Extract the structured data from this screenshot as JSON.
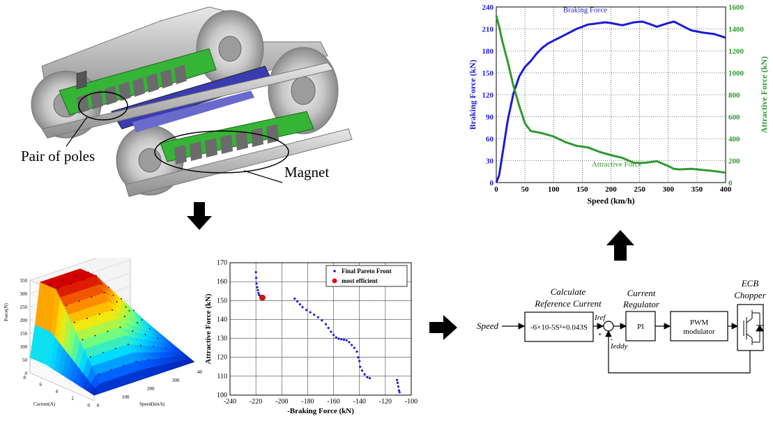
{
  "bogie": {
    "label_poles": "Pair of poles",
    "label_magnet": "Magnet"
  },
  "force_chart": {
    "chart_data": {
      "type": "line",
      "title": "",
      "xlabel": "Speed (km/h)",
      "ylabel_left": "Braking Force (kN)",
      "ylabel_right": "Attractive Force (kN)",
      "x_ticks": [
        0,
        50,
        100,
        150,
        200,
        250,
        300,
        350,
        400
      ],
      "y_left_ticks": [
        0,
        30,
        60,
        90,
        120,
        150,
        180,
        210,
        240
      ],
      "y_right_ticks": [
        0,
        200,
        400,
        600,
        800,
        1000,
        1200,
        1400,
        1600
      ],
      "xlim": [
        0,
        400
      ],
      "ylim_left": [
        0,
        240
      ],
      "ylim_right": [
        0,
        1600
      ],
      "grid": "dotted",
      "series": [
        {
          "name": "Braking Force",
          "axis": "left",
          "color": "#1a1ad8",
          "x": [
            0,
            5,
            10,
            20,
            30,
            40,
            50,
            60,
            70,
            80,
            90,
            100,
            120,
            140,
            160,
            180,
            190,
            200,
            220,
            240,
            255,
            270,
            280,
            300,
            310,
            320,
            340,
            360,
            380,
            400
          ],
          "y": [
            0,
            10,
            35,
            85,
            122,
            145,
            158,
            166,
            176,
            184,
            190,
            194,
            202,
            210,
            216,
            218,
            219,
            218,
            215,
            219,
            220,
            216,
            213,
            218,
            220,
            216,
            208,
            205,
            203,
            198
          ]
        },
        {
          "name": "Attractive Force",
          "axis": "right",
          "color": "#2e9a2e",
          "x": [
            0,
            5,
            10,
            20,
            30,
            40,
            50,
            60,
            80,
            100,
            120,
            140,
            160,
            180,
            200,
            220,
            240,
            260,
            280,
            300,
            310,
            320,
            340,
            360,
            380,
            400
          ],
          "y": [
            1520,
            1420,
            1300,
            1100,
            880,
            700,
            540,
            470,
            450,
            420,
            370,
            335,
            320,
            280,
            250,
            225,
            180,
            180,
            195,
            150,
            125,
            120,
            125,
            115,
            105,
            90
          ]
        }
      ]
    }
  },
  "surface_plot": {
    "zlabel": "Force(N)",
    "xlabel": "Current(A)",
    "ylabel": "Speed(km/h)",
    "z_ticks": [
      "0",
      "50",
      "100",
      "150",
      "200",
      "250",
      "300",
      "350"
    ],
    "current_ticks": [
      "8",
      "6",
      "4",
      "2",
      "0"
    ],
    "speed_ticks": [
      "0",
      "100",
      "200",
      "300",
      "400"
    ]
  },
  "pareto_chart": {
    "chart_data": {
      "type": "scatter",
      "title": "",
      "xlabel": "-Braking Force (kN)",
      "ylabel": "Attractive Force (kN)",
      "xlim": [
        -240,
        -100
      ],
      "ylim": [
        100,
        170
      ],
      "x_ticks": [
        -240,
        -220,
        -200,
        -180,
        -160,
        -140,
        -120,
        -100
      ],
      "y_ticks": [
        100,
        110,
        120,
        130,
        140,
        150,
        160,
        170
      ],
      "legend": "top-right",
      "series": [
        {
          "name": "Final Pareto Front",
          "color": "#1a1ad8",
          "points": [
            [
              -220,
              165
            ],
            [
              -219.8,
              162
            ],
            [
              -219.5,
              159
            ],
            [
              -219,
              157
            ],
            [
              -218.5,
              155.5
            ],
            [
              -218,
              154
            ],
            [
              -217.5,
              153
            ],
            [
              -216.5,
              152.3
            ],
            [
              -190,
              151
            ],
            [
              -188,
              149.5
            ],
            [
              -186,
              148
            ],
            [
              -184,
              146.5
            ],
            [
              -181,
              145
            ],
            [
              -178,
              143.8
            ],
            [
              -175,
              142.5
            ],
            [
              -172,
              141.2
            ],
            [
              -169,
              139.5
            ],
            [
              -166,
              137.5
            ],
            [
              -164,
              135.5
            ],
            [
              -162,
              133.5
            ],
            [
              -160,
              131.8
            ],
            [
              -158,
              130.5
            ],
            [
              -156,
              129.8
            ],
            [
              -154,
              129.5
            ],
            [
              -152,
              129.3
            ],
            [
              -150,
              129
            ],
            [
              -148,
              128
            ],
            [
              -146,
              126.5
            ],
            [
              -144,
              125
            ],
            [
              -142,
              123
            ],
            [
              -141,
              120
            ],
            [
              -140,
              118
            ],
            [
              -139.5,
              115
            ],
            [
              -138,
              113
            ],
            [
              -136,
              111
            ],
            [
              -134,
              109.5
            ],
            [
              -132,
              109
            ],
            [
              -111,
              108
            ],
            [
              -110.5,
              106.5
            ],
            [
              -110,
              104.5
            ],
            [
              -109.5,
              102.5
            ],
            [
              -109,
              101.5
            ]
          ]
        },
        {
          "name": "most efficient",
          "color": "#e01010",
          "points": [
            [
              -215,
              151.5
            ]
          ]
        }
      ]
    }
  },
  "control_diagram": {
    "input_label": "Speed",
    "calc_title": "Calculate\nReference Current",
    "calc_formula": "-6×10-5S²+0.043S",
    "iref_label": "Iref",
    "regulator_title": "Current\nRegulator",
    "pi_label": "PI",
    "pwm_label": "PWM\nmodulator",
    "ecb_title": "ECB\nChopper",
    "plus_label": "+",
    "minus_label": "-",
    "ieddy_label": "Ieddy"
  }
}
